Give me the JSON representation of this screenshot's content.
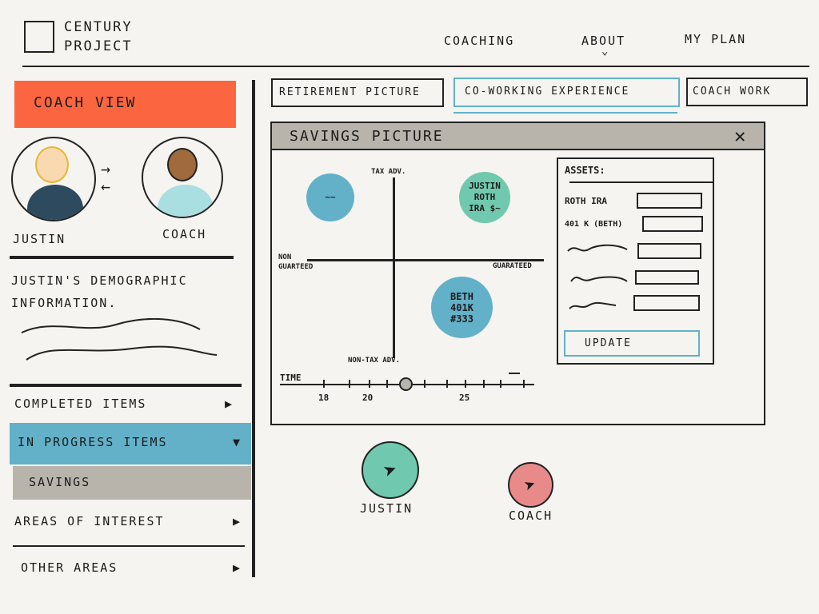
{
  "header": {
    "logo_text": "Century Project",
    "nav": [
      {
        "label": "Coaching"
      },
      {
        "label": "About"
      },
      {
        "label": "My Plan"
      }
    ]
  },
  "sidebar": {
    "coach_view_label": "Coach View",
    "avatars": [
      {
        "label": "Justin"
      },
      {
        "label": "Coach"
      }
    ],
    "demographic_title": "Justin's Demographic Information.",
    "items": [
      {
        "label": "Completed Items"
      },
      {
        "label": "In Progress Items",
        "active": true
      },
      {
        "label": "Savings",
        "sub": true
      },
      {
        "label": "Areas of Interest"
      },
      {
        "label": "Other Areas"
      }
    ]
  },
  "tabs": [
    {
      "label": "Retirement Picture"
    },
    {
      "label": "Co-Working Experience",
      "active": true
    },
    {
      "label": "Coach Work"
    }
  ],
  "panel": {
    "title": "Savings Picture",
    "quadrant": {
      "top": "Tax Adv.",
      "bottom": "Non-Tax Adv.",
      "left": "Non Guarteed",
      "right": "Guarateed",
      "bubbles": [
        {
          "label": "~~",
          "color": "#62b1c9"
        },
        {
          "label": "Justin Roth IRA $~",
          "color": "#70c9ae"
        },
        {
          "label": "Beth 401K #333",
          "color": "#62b1c9"
        }
      ]
    },
    "timeline": {
      "label": "Time",
      "ticks": [
        "18",
        "20",
        "25"
      ],
      "value": 22
    },
    "assets": {
      "title": "Assets:",
      "rows": [
        {
          "label": "Roth IRA",
          "value": ""
        },
        {
          "label": "401 K (Beth)",
          "value": ""
        },
        {
          "label": "",
          "value": ""
        },
        {
          "label": "",
          "value": ""
        },
        {
          "label": "",
          "value": ""
        }
      ],
      "update_label": "Update"
    }
  },
  "cursors": [
    {
      "label": "Justin",
      "color": "#70c9ae"
    },
    {
      "label": "Coach",
      "color": "#e88a8a"
    }
  ],
  "colors": {
    "accent": "#fb6640",
    "active": "#62b1c9",
    "sub": "#b8b4ac"
  }
}
